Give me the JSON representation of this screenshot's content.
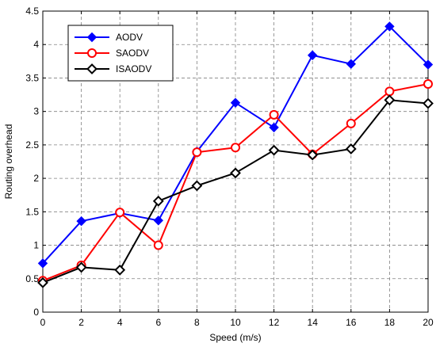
{
  "chart_data": {
    "type": "line",
    "title": "",
    "xlabel": "Speed (m/s)",
    "ylabel": "Routing overhead",
    "xlim": [
      0,
      20
    ],
    "ylim": [
      0,
      4.5
    ],
    "xticks": [
      0,
      2,
      4,
      6,
      8,
      10,
      12,
      14,
      16,
      18,
      20
    ],
    "yticks": [
      0,
      0.5,
      1,
      1.5,
      2,
      2.5,
      3,
      3.5,
      4,
      4.5
    ],
    "grid": true,
    "legend_position": "top-left",
    "x": [
      0,
      2,
      4,
      6,
      8,
      10,
      12,
      14,
      16,
      18,
      20
    ],
    "series": [
      {
        "name": "AODV",
        "color": "#0000ff",
        "marker": "diamond-filled",
        "values": [
          0.73,
          1.36,
          1.48,
          1.37,
          2.4,
          3.13,
          2.76,
          3.84,
          3.71,
          4.27,
          3.7
        ]
      },
      {
        "name": "SAODV",
        "color": "#ff0000",
        "marker": "circle-open",
        "values": [
          0.47,
          0.7,
          1.49,
          1.0,
          2.39,
          2.46,
          2.95,
          2.36,
          2.82,
          3.3,
          3.41
        ]
      },
      {
        "name": "ISAODV",
        "color": "#000000",
        "marker": "diamond-open",
        "values": [
          0.44,
          0.67,
          0.63,
          1.66,
          1.89,
          2.08,
          2.42,
          2.35,
          2.44,
          3.17,
          3.12
        ]
      }
    ]
  }
}
